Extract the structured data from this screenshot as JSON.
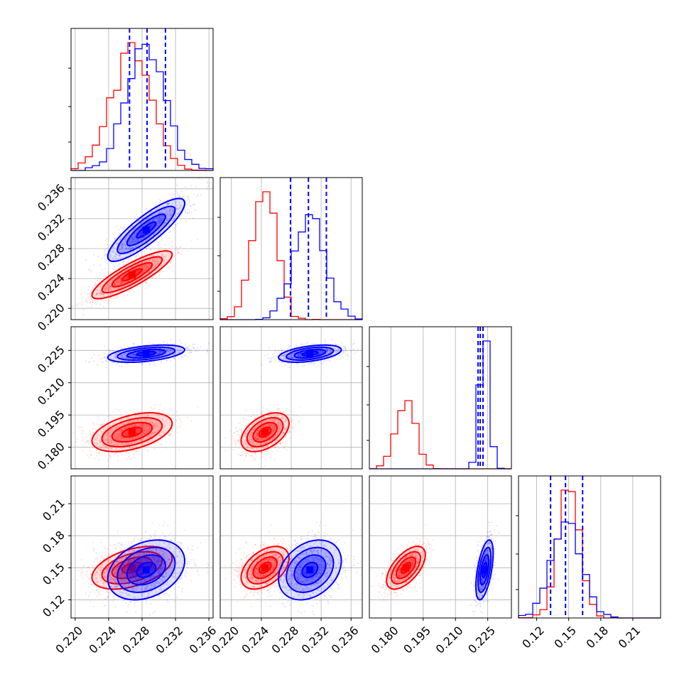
{
  "chart_data": {
    "type": "corner",
    "title": "",
    "n_params": 4,
    "param_labels": [
      "",
      "",
      "",
      ""
    ],
    "grid": true,
    "colors": {
      "A": "#ff0000",
      "B": "#0000ff"
    },
    "ranges": [
      [
        0.2195,
        0.2365
      ],
      [
        0.2185,
        0.2375
      ],
      [
        0.17,
        0.236
      ],
      [
        0.103,
        0.236
      ]
    ],
    "ticks": [
      [
        "0.220",
        "0.224",
        "0.228",
        "0.232",
        "0.236"
      ],
      [
        "0.220",
        "0.224",
        "0.228",
        "0.232",
        "0.236"
      ],
      [
        "0.180",
        "0.195",
        "0.210",
        "0.225"
      ],
      [
        "0.12",
        "0.15",
        "0.18",
        "0.21"
      ]
    ],
    "series": [
      {
        "color": "#ff0000",
        "means": [
          0.2268,
          0.2245,
          0.187,
          0.15
        ],
        "stds": [
          0.0024,
          0.0016,
          0.0045,
          0.01
        ],
        "correlations": {
          "1_0": 0.85,
          "2_0": 0.45,
          "2_1": 0.45,
          "3_0": 0.45,
          "3_1": 0.45,
          "3_2": 0.6
        }
      },
      {
        "color": "#0000ff",
        "means": [
          0.2285,
          0.2305,
          0.2235,
          0.148
        ],
        "stds": [
          0.0023,
          0.0021,
          0.002,
          0.014
        ],
        "correlations": {
          "1_0": 0.85,
          "2_0": 0.45,
          "2_1": 0.45,
          "3_0": 0.3,
          "3_1": 0.3,
          "3_2": 0.55
        }
      }
    ],
    "quantile_lines": {
      "color": "#0000ff",
      "values": [
        [
          0.2265,
          0.2286,
          0.2308
        ],
        [
          0.2279,
          0.2303,
          0.2327
        ],
        [
          0.2205,
          0.2215,
          0.2228
        ],
        [
          0.133,
          0.147,
          0.163
        ]
      ]
    }
  }
}
